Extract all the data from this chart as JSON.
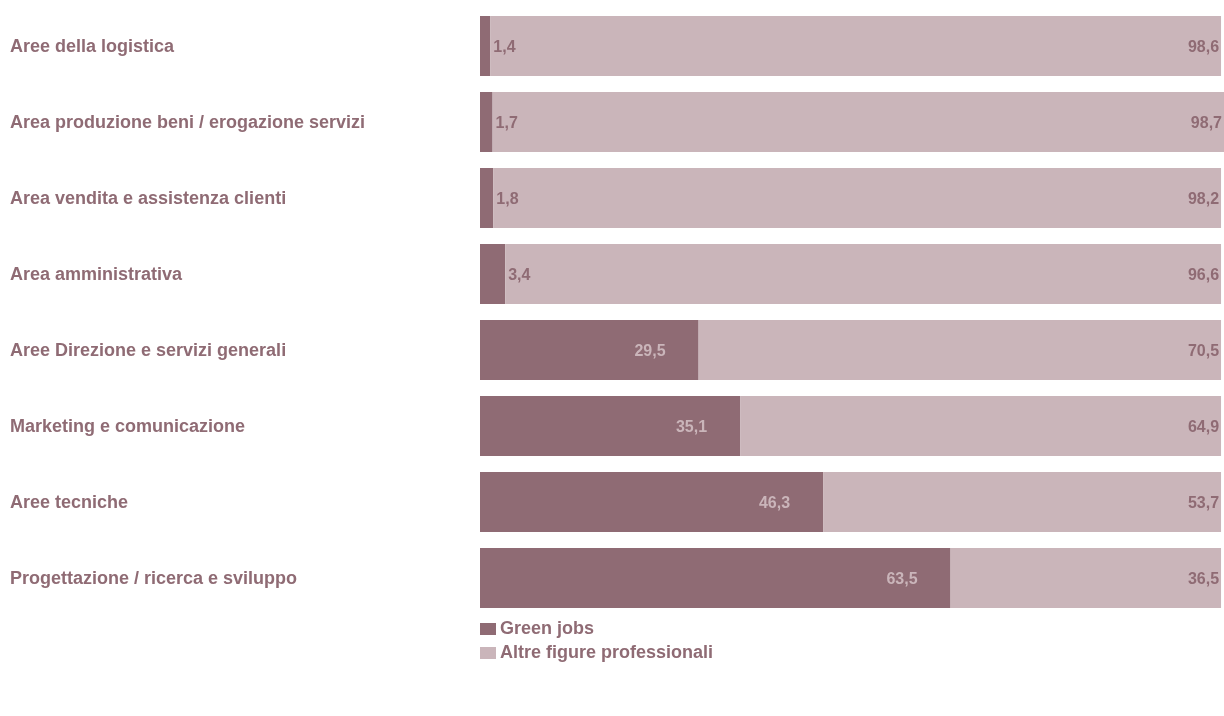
{
  "chart_data": {
    "type": "bar",
    "orientation": "horizontal",
    "stacked": true,
    "categories": [
      "Aree della logistica",
      "Area produzione beni / erogazione servizi",
      "Area vendita e assistenza clienti",
      "Area amministrativa",
      "Aree Direzione e servizi generali",
      "Marketing e comunicazione",
      "Aree tecniche",
      "Progettazione / ricerca e sviluppo"
    ],
    "series": [
      {
        "name": "Green jobs",
        "color": "#8f6b74",
        "values": [
          1.4,
          1.7,
          1.8,
          3.4,
          29.5,
          35.1,
          46.3,
          63.5
        ],
        "value_labels": [
          "1,4",
          "1,7",
          "1,8",
          "3,4",
          "29,5",
          "35,1",
          "46,3",
          "63,5"
        ]
      },
      {
        "name": "Altre figure professionali",
        "color": "#cab5ba",
        "values": [
          98.6,
          98.7,
          98.2,
          96.6,
          70.5,
          64.9,
          53.7,
          36.5
        ],
        "value_labels": [
          "98,6",
          "98,7",
          "98,2",
          "96,6",
          "70,5",
          "64,9",
          "53,7",
          "36,5"
        ]
      }
    ],
    "xlim": [
      0,
      100.4
    ],
    "tick_labels": "y",
    "grid": false,
    "legend": "bottom"
  }
}
